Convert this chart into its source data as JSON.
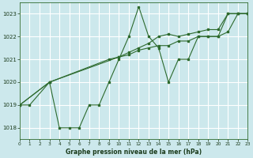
{
  "title": "Graphe pression niveau de la mer (hPa)",
  "bg_color": "#cce8ec",
  "grid_color": "#b8dde0",
  "line_color": "#2d6a2d",
  "xlim": [
    0,
    23
  ],
  "ylim": [
    1017.5,
    1023.5
  ],
  "yticks": [
    1018,
    1019,
    1020,
    1021,
    1022,
    1023
  ],
  "xticks": [
    0,
    1,
    2,
    3,
    4,
    5,
    6,
    7,
    8,
    9,
    10,
    11,
    12,
    13,
    14,
    15,
    16,
    17,
    18,
    19,
    20,
    21,
    22,
    23
  ],
  "series": [
    {
      "x": [
        0,
        1,
        3,
        4,
        5,
        6,
        7,
        8,
        9,
        10,
        11,
        12,
        13,
        14,
        15,
        16,
        17,
        18,
        19,
        20,
        21,
        22,
        23
      ],
      "y": [
        1019.0,
        1019.0,
        1020.0,
        1018.0,
        1018.0,
        1018.0,
        1019.0,
        1019.0,
        1020.0,
        1021.0,
        1022.0,
        1023.3,
        1022.0,
        1021.5,
        1020.0,
        1021.0,
        1021.0,
        1022.0,
        1022.0,
        1022.0,
        1023.0,
        1023.0,
        1023.0
      ]
    },
    {
      "x": [
        0,
        3,
        9,
        10,
        11,
        12,
        13,
        14,
        15,
        16,
        17,
        18,
        19,
        20,
        21,
        22,
        23
      ],
      "y": [
        1019.0,
        1020.0,
        1021.0,
        1021.1,
        1021.2,
        1021.4,
        1021.5,
        1021.6,
        1021.6,
        1021.8,
        1021.8,
        1022.0,
        1022.0,
        1022.0,
        1022.2,
        1023.0,
        1023.0
      ]
    },
    {
      "x": [
        0,
        3,
        10,
        11,
        12,
        13,
        14,
        15,
        16,
        17,
        18,
        19,
        20,
        21,
        22,
        23
      ],
      "y": [
        1019.0,
        1020.0,
        1021.1,
        1021.3,
        1021.5,
        1021.7,
        1022.0,
        1022.1,
        1022.0,
        1022.1,
        1022.2,
        1022.3,
        1022.3,
        1023.0,
        1023.0,
        1023.0
      ]
    }
  ]
}
